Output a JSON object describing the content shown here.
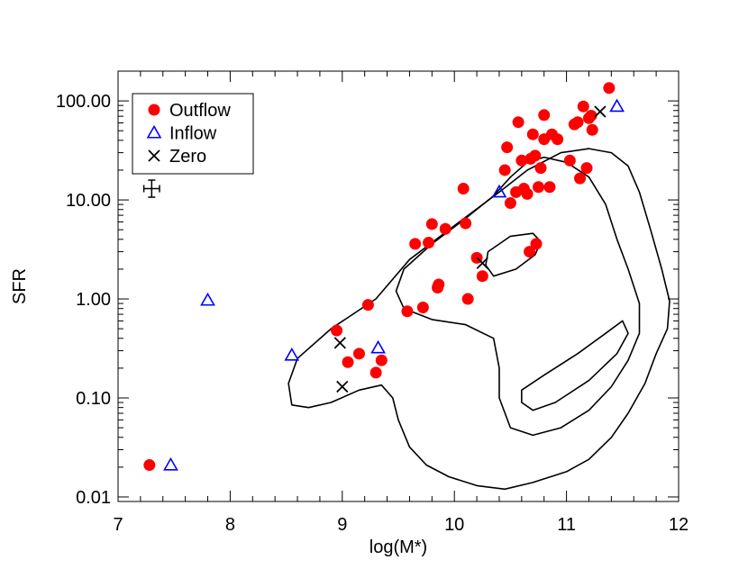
{
  "chart_data": {
    "type": "scatter",
    "xlabel": "log(M*)",
    "ylabel": "SFR",
    "xlim": [
      7,
      12
    ],
    "ylim": [
      0.009,
      200
    ],
    "yscale": "log",
    "grid": false,
    "legend_position": "top-left",
    "x_ticks": [
      {
        "value": 7,
        "label": "7"
      },
      {
        "value": 8,
        "label": "8"
      },
      {
        "value": 9,
        "label": "9"
      },
      {
        "value": 10,
        "label": "10"
      },
      {
        "value": 11,
        "label": "11"
      },
      {
        "value": 12,
        "label": "12"
      }
    ],
    "y_ticks": [
      {
        "value": 0.01,
        "label": "0.01"
      },
      {
        "value": 0.1,
        "label": "0.10"
      },
      {
        "value": 1,
        "label": "1.00"
      },
      {
        "value": 10,
        "label": "10.00"
      },
      {
        "value": 100,
        "label": "100.00"
      }
    ],
    "series": [
      {
        "name": "Outflow",
        "marker": "filled-circle",
        "color": "#ff0000",
        "points": [
          [
            7.28,
            0.021
          ],
          [
            8.95,
            0.48
          ],
          [
            9.05,
            0.23
          ],
          [
            9.15,
            0.28
          ],
          [
            9.23,
            0.87
          ],
          [
            9.3,
            0.18
          ],
          [
            9.35,
            0.24
          ],
          [
            9.58,
            0.75
          ],
          [
            9.65,
            3.6
          ],
          [
            9.72,
            0.82
          ],
          [
            9.77,
            3.7
          ],
          [
            9.8,
            5.7
          ],
          [
            9.85,
            1.3
          ],
          [
            9.86,
            1.4
          ],
          [
            9.92,
            5.1
          ],
          [
            10.08,
            13.0
          ],
          [
            10.1,
            5.8
          ],
          [
            10.12,
            1.0
          ],
          [
            10.2,
            2.6
          ],
          [
            10.25,
            1.7
          ],
          [
            10.45,
            20.0
          ],
          [
            10.47,
            34.0
          ],
          [
            10.5,
            9.3
          ],
          [
            10.55,
            12.0
          ],
          [
            10.57,
            61.0
          ],
          [
            10.6,
            25.0
          ],
          [
            10.62,
            13.0
          ],
          [
            10.65,
            11.5
          ],
          [
            10.67,
            3.0
          ],
          [
            10.68,
            26.0
          ],
          [
            10.7,
            46.0
          ],
          [
            10.72,
            28.0
          ],
          [
            10.73,
            3.6
          ],
          [
            10.75,
            13.5
          ],
          [
            10.77,
            21.0
          ],
          [
            10.8,
            41.0
          ],
          [
            10.8,
            72.0
          ],
          [
            10.85,
            13.5
          ],
          [
            10.87,
            46.0
          ],
          [
            10.92,
            41.0
          ],
          [
            11.03,
            25.0
          ],
          [
            11.07,
            58.0
          ],
          [
            11.1,
            61.0
          ],
          [
            11.12,
            16.5
          ],
          [
            11.15,
            88.0
          ],
          [
            11.18,
            21.0
          ],
          [
            11.2,
            67.0
          ],
          [
            11.22,
            71.0
          ],
          [
            11.23,
            51.0
          ],
          [
            11.38,
            135.0
          ]
        ]
      },
      {
        "name": "Inflow",
        "marker": "open-triangle",
        "color": "#0000ff",
        "points": [
          [
            7.47,
            0.021
          ],
          [
            7.8,
            0.97
          ],
          [
            8.55,
            0.27
          ],
          [
            9.32,
            0.32
          ],
          [
            10.4,
            12.0
          ],
          [
            11.45,
            88.0
          ]
        ]
      },
      {
        "name": "Zero",
        "marker": "x",
        "color": "#000000",
        "points": [
          [
            8.98,
            0.36
          ],
          [
            9.0,
            0.13
          ],
          [
            10.25,
            2.3
          ],
          [
            11.3,
            78.0
          ]
        ]
      }
    ],
    "error_bar_annotation": {
      "x": 7.3,
      "y": 13.0,
      "xerr": 0.07,
      "yerr_factor": 1.22
    },
    "contours": [
      {
        "level": "outer",
        "path": [
          [
            8.52,
            0.14
          ],
          [
            8.6,
            0.25
          ],
          [
            8.9,
            0.5
          ],
          [
            9.3,
            1.0
          ],
          [
            9.6,
            2.5
          ],
          [
            10.0,
            5.5
          ],
          [
            10.4,
            12.0
          ],
          [
            10.65,
            20.0
          ],
          [
            10.95,
            30.0
          ],
          [
            11.2,
            33.0
          ],
          [
            11.4,
            30.0
          ],
          [
            11.55,
            22.0
          ],
          [
            11.65,
            12.0
          ],
          [
            11.75,
            5.0
          ],
          [
            11.85,
            2.0
          ],
          [
            11.92,
            0.95
          ],
          [
            11.9,
            0.5
          ],
          [
            11.8,
            0.28
          ],
          [
            11.7,
            0.14
          ],
          [
            11.55,
            0.07
          ],
          [
            11.4,
            0.04
          ],
          [
            11.2,
            0.024
          ],
          [
            11.0,
            0.018
          ],
          [
            10.7,
            0.014
          ],
          [
            10.45,
            0.012
          ],
          [
            10.2,
            0.013
          ],
          [
            9.95,
            0.016
          ],
          [
            9.75,
            0.021
          ],
          [
            9.6,
            0.032
          ],
          [
            9.5,
            0.06
          ],
          [
            9.45,
            0.1
          ],
          [
            9.35,
            0.135
          ],
          [
            9.15,
            0.12
          ],
          [
            8.9,
            0.09
          ],
          [
            8.7,
            0.08
          ],
          [
            8.55,
            0.085
          ],
          [
            8.52,
            0.14
          ]
        ]
      },
      {
        "level": "middle",
        "path": [
          [
            9.55,
            2.0
          ],
          [
            9.8,
            3.6
          ],
          [
            10.1,
            6.5
          ],
          [
            10.35,
            11.0
          ],
          [
            10.5,
            17.0
          ],
          [
            10.65,
            24.0
          ],
          [
            10.8,
            27.0
          ],
          [
            11.0,
            24.0
          ],
          [
            11.2,
            17.0
          ],
          [
            11.35,
            9.0
          ],
          [
            11.45,
            4.0
          ],
          [
            11.55,
            2.0
          ],
          [
            11.65,
            0.9
          ],
          [
            11.65,
            0.45
          ],
          [
            11.55,
            0.24
          ],
          [
            11.4,
            0.13
          ],
          [
            11.2,
            0.075
          ],
          [
            10.95,
            0.05
          ],
          [
            10.7,
            0.042
          ],
          [
            10.5,
            0.05
          ],
          [
            10.4,
            0.1
          ],
          [
            10.4,
            0.2
          ],
          [
            10.35,
            0.4
          ],
          [
            10.1,
            0.55
          ],
          [
            9.8,
            0.62
          ],
          [
            9.55,
            0.8
          ],
          [
            9.48,
            1.2
          ],
          [
            9.55,
            2.0
          ]
        ]
      },
      {
        "level": "inner-upper",
        "path": [
          [
            10.3,
            3.0
          ],
          [
            10.5,
            4.3
          ],
          [
            10.7,
            4.6
          ],
          [
            10.77,
            3.8
          ],
          [
            10.72,
            2.8
          ],
          [
            10.55,
            2.0
          ],
          [
            10.35,
            1.7
          ],
          [
            10.28,
            2.2
          ],
          [
            10.3,
            3.0
          ]
        ]
      },
      {
        "level": "inner-lower",
        "path": [
          [
            10.6,
            0.12
          ],
          [
            10.8,
            0.17
          ],
          [
            11.1,
            0.28
          ],
          [
            11.35,
            0.45
          ],
          [
            11.5,
            0.6
          ],
          [
            11.55,
            0.45
          ],
          [
            11.45,
            0.28
          ],
          [
            11.2,
            0.15
          ],
          [
            10.9,
            0.09
          ],
          [
            10.7,
            0.075
          ],
          [
            10.6,
            0.09
          ],
          [
            10.6,
            0.12
          ]
        ]
      }
    ]
  }
}
